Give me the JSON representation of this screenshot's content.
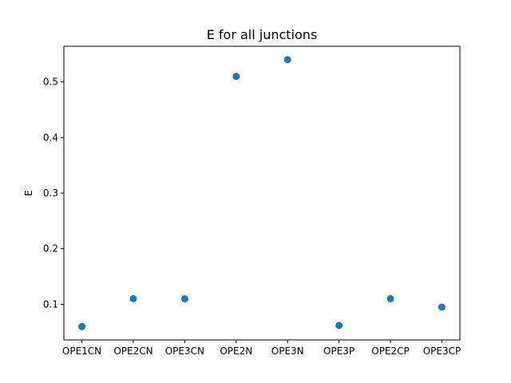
{
  "chart_data": {
    "type": "scatter",
    "title": "E for all junctions",
    "xlabel": "",
    "ylabel": "E",
    "categories": [
      "OPE1CN",
      "OPE2CN",
      "OPE3CN",
      "OPE2N",
      "OPE3N",
      "OPE3P",
      "OPE2CP",
      "OPE3CP"
    ],
    "series": [
      {
        "values": [
          0.06,
          0.11,
          0.11,
          0.51,
          0.54,
          0.062,
          0.11,
          0.095
        ],
        "color": "#1f77b4"
      }
    ],
    "ylim": [
      0.036,
      0.564
    ],
    "yticks": [
      0.1,
      0.2,
      0.3,
      0.4,
      0.5
    ],
    "ytick_labels": [
      "0.1",
      "0.2",
      "0.3",
      "0.4",
      "0.5"
    ],
    "grid": false,
    "legend": false
  }
}
